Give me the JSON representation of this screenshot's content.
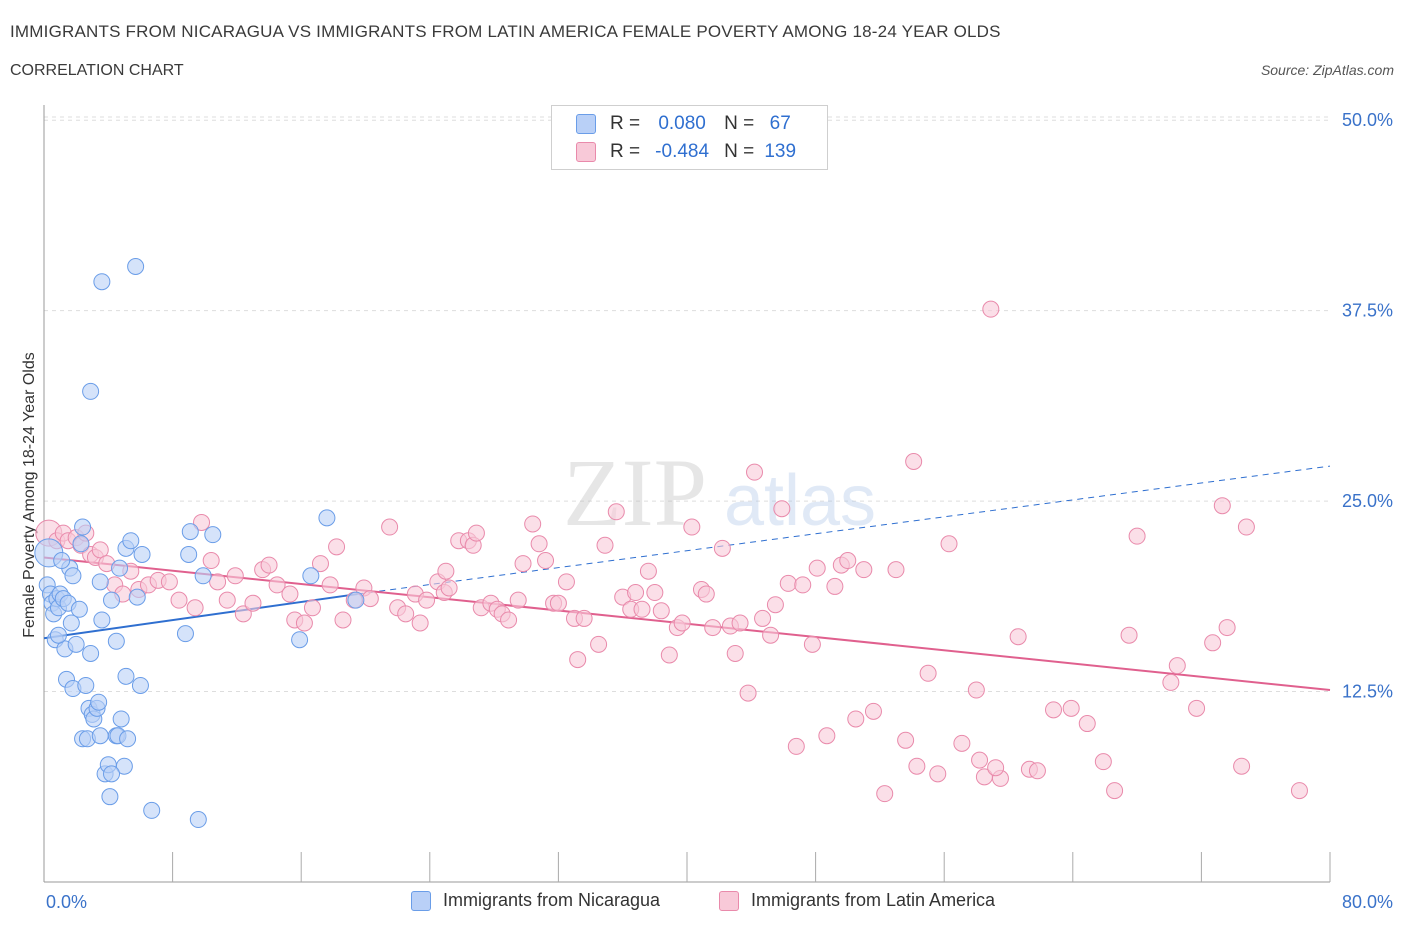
{
  "header": {
    "title": "IMMIGRANTS FROM NICARAGUA VS IMMIGRANTS FROM LATIN AMERICA FEMALE POVERTY AMONG 18-24 YEAR OLDS",
    "subtitle": "CORRELATION CHART",
    "source": "Source: ZipAtlas.com"
  },
  "legend": {
    "rows": [
      {
        "r_label": "R =",
        "r_value": "0.080",
        "n_label": "N =",
        "n_value": "67"
      },
      {
        "r_label": "R =",
        "r_value": "-0.484",
        "n_label": "N =",
        "n_value": "139"
      }
    ]
  },
  "bottom_legend": {
    "series1": "Immigrants from Nicaragua",
    "series2": "Immigrants from Latin America"
  },
  "watermark": {
    "zip": "ZIP",
    "atlas": "atlas"
  },
  "colors": {
    "blue": "#6a9de8",
    "blue_fill": "#b9d0f7",
    "blue_line": "#2f6fd0",
    "pink": "#e98aab",
    "pink_fill": "#f8c9d8",
    "pink_line": "#e0608e",
    "grid": "#dddddd",
    "tick_text": "#3a72c9"
  },
  "chart_data": {
    "type": "scatter",
    "title": "IMMIGRANTS FROM NICARAGUA VS IMMIGRANTS FROM LATIN AMERICA FEMALE POVERTY AMONG 18-24 YEAR OLDS",
    "xlabel": "",
    "ylabel": "Female Poverty Among 18-24 Year Olds",
    "xlim": [
      0,
      80
    ],
    "ylim": [
      0,
      51
    ],
    "x_tick_labels": [
      "0.0%",
      "80.0%"
    ],
    "y_ticks": [
      12.5,
      25.0,
      37.5,
      50.0
    ],
    "y_tick_labels": [
      "12.5%",
      "25.0%",
      "37.5%",
      "50.0%"
    ],
    "grid": true,
    "legend_position": "top-center",
    "series": [
      {
        "name": "Immigrants from Nicaragua",
        "R": 0.08,
        "N": 67,
        "trend": {
          "x0": 0,
          "y0": 16.0,
          "x1": 19.5,
          "y1": 18.9,
          "dashed_to_x": 80,
          "dashed_to_y": 27.3
        },
        "points": [
          [
            0.3,
            21.6
          ],
          [
            0.2,
            19.5
          ],
          [
            0.4,
            18.9
          ],
          [
            0.5,
            18.3
          ],
          [
            0.6,
            17.6
          ],
          [
            0.8,
            18.6
          ],
          [
            0.9,
            18.0
          ],
          [
            1.0,
            18.9
          ],
          [
            1.2,
            18.6
          ],
          [
            0.7,
            15.9
          ],
          [
            1.3,
            15.3
          ],
          [
            1.5,
            18.3
          ],
          [
            1.6,
            20.6
          ],
          [
            1.8,
            20.1
          ],
          [
            1.7,
            17.0
          ],
          [
            2.0,
            15.6
          ],
          [
            2.2,
            17.9
          ],
          [
            2.4,
            23.3
          ],
          [
            2.3,
            22.2
          ],
          [
            1.4,
            13.3
          ],
          [
            1.8,
            12.7
          ],
          [
            2.6,
            12.9
          ],
          [
            2.8,
            11.4
          ],
          [
            3.0,
            11.0
          ],
          [
            3.1,
            10.7
          ],
          [
            3.3,
            11.4
          ],
          [
            3.4,
            11.8
          ],
          [
            2.9,
            15.0
          ],
          [
            2.4,
            9.4
          ],
          [
            2.7,
            9.4
          ],
          [
            3.5,
            9.6
          ],
          [
            3.8,
            7.1
          ],
          [
            4.0,
            7.7
          ],
          [
            4.5,
            9.6
          ],
          [
            4.8,
            10.7
          ],
          [
            4.6,
            9.6
          ],
          [
            5.2,
            9.4
          ],
          [
            5.0,
            7.6
          ],
          [
            4.1,
            5.6
          ],
          [
            3.6,
            17.2
          ],
          [
            3.5,
            19.7
          ],
          [
            4.2,
            18.5
          ],
          [
            4.7,
            20.6
          ],
          [
            5.1,
            21.9
          ],
          [
            5.4,
            22.4
          ],
          [
            5.8,
            18.7
          ],
          [
            6.1,
            21.5
          ],
          [
            6.0,
            12.9
          ],
          [
            6.7,
            4.7
          ],
          [
            5.1,
            13.5
          ],
          [
            4.2,
            7.1
          ],
          [
            3.6,
            39.4
          ],
          [
            5.7,
            40.4
          ],
          [
            2.9,
            32.2
          ],
          [
            8.8,
            16.3
          ],
          [
            9.0,
            21.5
          ],
          [
            9.1,
            23.0
          ],
          [
            9.9,
            20.1
          ],
          [
            10.5,
            22.8
          ],
          [
            9.6,
            4.1
          ],
          [
            15.9,
            15.9
          ],
          [
            16.6,
            20.1
          ],
          [
            17.6,
            23.9
          ],
          [
            19.4,
            18.5
          ],
          [
            0.9,
            16.2
          ],
          [
            4.5,
            15.8
          ],
          [
            1.1,
            21.1
          ]
        ]
      },
      {
        "name": "Immigrants from Latin America",
        "R": -0.484,
        "N": 139,
        "trend": {
          "x0": 0,
          "y0": 21.3,
          "x1": 80,
          "y1": 12.6
        },
        "points": [
          [
            0.3,
            22.9
          ],
          [
            0.8,
            22.4
          ],
          [
            1.2,
            22.9
          ],
          [
            1.5,
            22.4
          ],
          [
            2.0,
            22.6
          ],
          [
            2.3,
            22.1
          ],
          [
            2.6,
            22.9
          ],
          [
            2.9,
            21.5
          ],
          [
            3.2,
            21.3
          ],
          [
            3.5,
            21.8
          ],
          [
            3.9,
            20.9
          ],
          [
            4.4,
            19.5
          ],
          [
            4.9,
            18.9
          ],
          [
            5.4,
            20.4
          ],
          [
            5.9,
            19.2
          ],
          [
            6.5,
            19.5
          ],
          [
            7.1,
            19.8
          ],
          [
            7.8,
            19.7
          ],
          [
            8.4,
            18.5
          ],
          [
            9.4,
            18.0
          ],
          [
            9.8,
            23.6
          ],
          [
            10.4,
            21.1
          ],
          [
            10.8,
            19.7
          ],
          [
            11.4,
            18.5
          ],
          [
            11.9,
            20.1
          ],
          [
            12.4,
            17.6
          ],
          [
            13.0,
            18.3
          ],
          [
            13.6,
            20.5
          ],
          [
            14.0,
            20.8
          ],
          [
            14.5,
            19.5
          ],
          [
            15.3,
            18.9
          ],
          [
            15.6,
            17.2
          ],
          [
            16.2,
            17.0
          ],
          [
            16.7,
            18.0
          ],
          [
            17.2,
            20.9
          ],
          [
            17.8,
            19.5
          ],
          [
            18.2,
            22.0
          ],
          [
            18.6,
            17.2
          ],
          [
            19.3,
            18.5
          ],
          [
            19.9,
            19.3
          ],
          [
            20.3,
            18.6
          ],
          [
            21.5,
            23.3
          ],
          [
            22.0,
            18.0
          ],
          [
            22.5,
            17.6
          ],
          [
            23.1,
            18.9
          ],
          [
            23.4,
            17.0
          ],
          [
            23.8,
            18.5
          ],
          [
            24.5,
            19.7
          ],
          [
            24.9,
            19.0
          ],
          [
            25.0,
            20.4
          ],
          [
            25.2,
            19.3
          ],
          [
            25.8,
            22.4
          ],
          [
            26.4,
            22.4
          ],
          [
            26.7,
            22.1
          ],
          [
            26.9,
            22.9
          ],
          [
            27.2,
            18.0
          ],
          [
            27.8,
            18.3
          ],
          [
            28.2,
            17.9
          ],
          [
            28.5,
            17.6
          ],
          [
            28.9,
            17.2
          ],
          [
            29.5,
            18.5
          ],
          [
            29.8,
            20.9
          ],
          [
            30.4,
            23.5
          ],
          [
            30.8,
            22.2
          ],
          [
            31.2,
            21.1
          ],
          [
            31.7,
            18.3
          ],
          [
            32.0,
            18.3
          ],
          [
            32.5,
            19.7
          ],
          [
            33.0,
            17.3
          ],
          [
            33.2,
            14.6
          ],
          [
            33.6,
            17.3
          ],
          [
            34.5,
            15.6
          ],
          [
            34.9,
            22.1
          ],
          [
            35.6,
            24.3
          ],
          [
            36.0,
            18.7
          ],
          [
            36.5,
            17.9
          ],
          [
            36.8,
            19.0
          ],
          [
            37.2,
            17.9
          ],
          [
            37.6,
            20.4
          ],
          [
            38.0,
            19.0
          ],
          [
            38.4,
            17.8
          ],
          [
            38.9,
            14.9
          ],
          [
            39.4,
            16.7
          ],
          [
            39.7,
            17.0
          ],
          [
            40.3,
            23.3
          ],
          [
            40.9,
            19.2
          ],
          [
            41.2,
            18.9
          ],
          [
            41.6,
            16.7
          ],
          [
            42.2,
            21.9
          ],
          [
            42.7,
            16.8
          ],
          [
            43.0,
            15.0
          ],
          [
            43.3,
            17.0
          ],
          [
            43.8,
            12.4
          ],
          [
            44.2,
            26.9
          ],
          [
            44.7,
            17.3
          ],
          [
            45.2,
            16.2
          ],
          [
            45.5,
            18.2
          ],
          [
            45.9,
            24.5
          ],
          [
            46.3,
            19.6
          ],
          [
            46.8,
            8.9
          ],
          [
            47.2,
            19.5
          ],
          [
            47.8,
            15.6
          ],
          [
            48.1,
            20.6
          ],
          [
            48.7,
            9.6
          ],
          [
            49.2,
            19.4
          ],
          [
            49.6,
            20.8
          ],
          [
            50.0,
            21.1
          ],
          [
            50.5,
            10.7
          ],
          [
            51.0,
            20.5
          ],
          [
            51.6,
            11.2
          ],
          [
            52.3,
            5.8
          ],
          [
            53.0,
            20.5
          ],
          [
            54.1,
            27.6
          ],
          [
            53.6,
            9.3
          ],
          [
            54.3,
            7.6
          ],
          [
            55.0,
            13.7
          ],
          [
            55.6,
            7.1
          ],
          [
            56.3,
            22.2
          ],
          [
            57.1,
            9.1
          ],
          [
            58.0,
            12.6
          ],
          [
            58.2,
            8.0
          ],
          [
            58.5,
            6.9
          ],
          [
            59.5,
            6.8
          ],
          [
            59.2,
            7.5
          ],
          [
            60.6,
            16.1
          ],
          [
            61.3,
            7.4
          ],
          [
            61.8,
            7.3
          ],
          [
            62.8,
            11.3
          ],
          [
            63.9,
            11.4
          ],
          [
            64.9,
            10.4
          ],
          [
            65.9,
            7.9
          ],
          [
            66.6,
            6.0
          ],
          [
            67.5,
            16.2
          ],
          [
            68.0,
            22.7
          ],
          [
            70.1,
            13.1
          ],
          [
            70.5,
            14.2
          ],
          [
            71.7,
            11.4
          ],
          [
            72.7,
            15.7
          ],
          [
            73.3,
            24.7
          ],
          [
            73.6,
            16.7
          ],
          [
            74.5,
            7.6
          ],
          [
            74.8,
            23.3
          ],
          [
            78.1,
            6.0
          ],
          [
            58.9,
            37.6
          ]
        ]
      }
    ]
  }
}
